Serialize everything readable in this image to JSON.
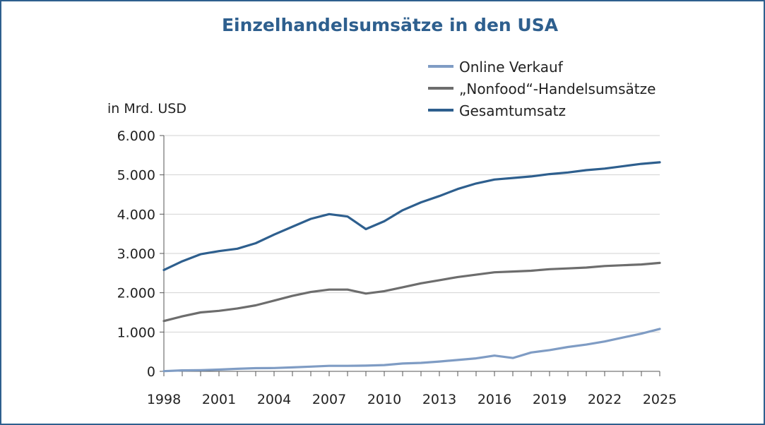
{
  "chart_data": {
    "type": "line",
    "title": "Einzelhandelsumsätze in den USA",
    "ylabel": "in Mrd. USD",
    "xlabel": "",
    "xlim": [
      1998,
      2025
    ],
    "ylim": [
      0,
      6000
    ],
    "grid": "horizontal",
    "legend_position": "top-right",
    "x_ticks": [
      "1998",
      "2001",
      "2004",
      "2007",
      "2010",
      "2013",
      "2016",
      "2019",
      "2022",
      "2025"
    ],
    "y_ticks": [
      "0",
      "1.000",
      "2.000",
      "3.000",
      "4.000",
      "5.000",
      "6.000"
    ],
    "x": [
      1998,
      1999,
      2000,
      2001,
      2002,
      2003,
      2004,
      2005,
      2006,
      2007,
      2008,
      2009,
      2010,
      2011,
      2012,
      2013,
      2014,
      2015,
      2016,
      2017,
      2018,
      2019,
      2020,
      2021,
      2022,
      2023,
      2024,
      2025
    ],
    "series": [
      {
        "name": "Online Verkauf",
        "color": "#7f9cc4",
        "values": [
          5,
          25,
          30,
          45,
          65,
          80,
          85,
          100,
          120,
          140,
          140,
          145,
          160,
          200,
          215,
          250,
          290,
          330,
          400,
          340,
          480,
          540,
          620,
          680,
          760,
          860,
          960,
          1080
        ]
      },
      {
        "name": "„Nonfood“-Handelsumsätze",
        "color": "#6d6d6d",
        "values": [
          1280,
          1400,
          1500,
          1540,
          1600,
          1680,
          1800,
          1920,
          2020,
          2080,
          2080,
          1980,
          2040,
          2140,
          2240,
          2320,
          2400,
          2460,
          2520,
          2540,
          2560,
          2600,
          2620,
          2640,
          2680,
          2700,
          2720,
          2760
        ]
      },
      {
        "name": "Gesamtumsatz",
        "color": "#2e5f8e",
        "values": [
          2580,
          2800,
          2980,
          3060,
          3120,
          3260,
          3480,
          3680,
          3880,
          4000,
          3940,
          3620,
          3820,
          4100,
          4300,
          4460,
          4640,
          4780,
          4880,
          4920,
          4960,
          5020,
          5060,
          5120,
          5160,
          5220,
          5280,
          5320
        ]
      }
    ]
  }
}
